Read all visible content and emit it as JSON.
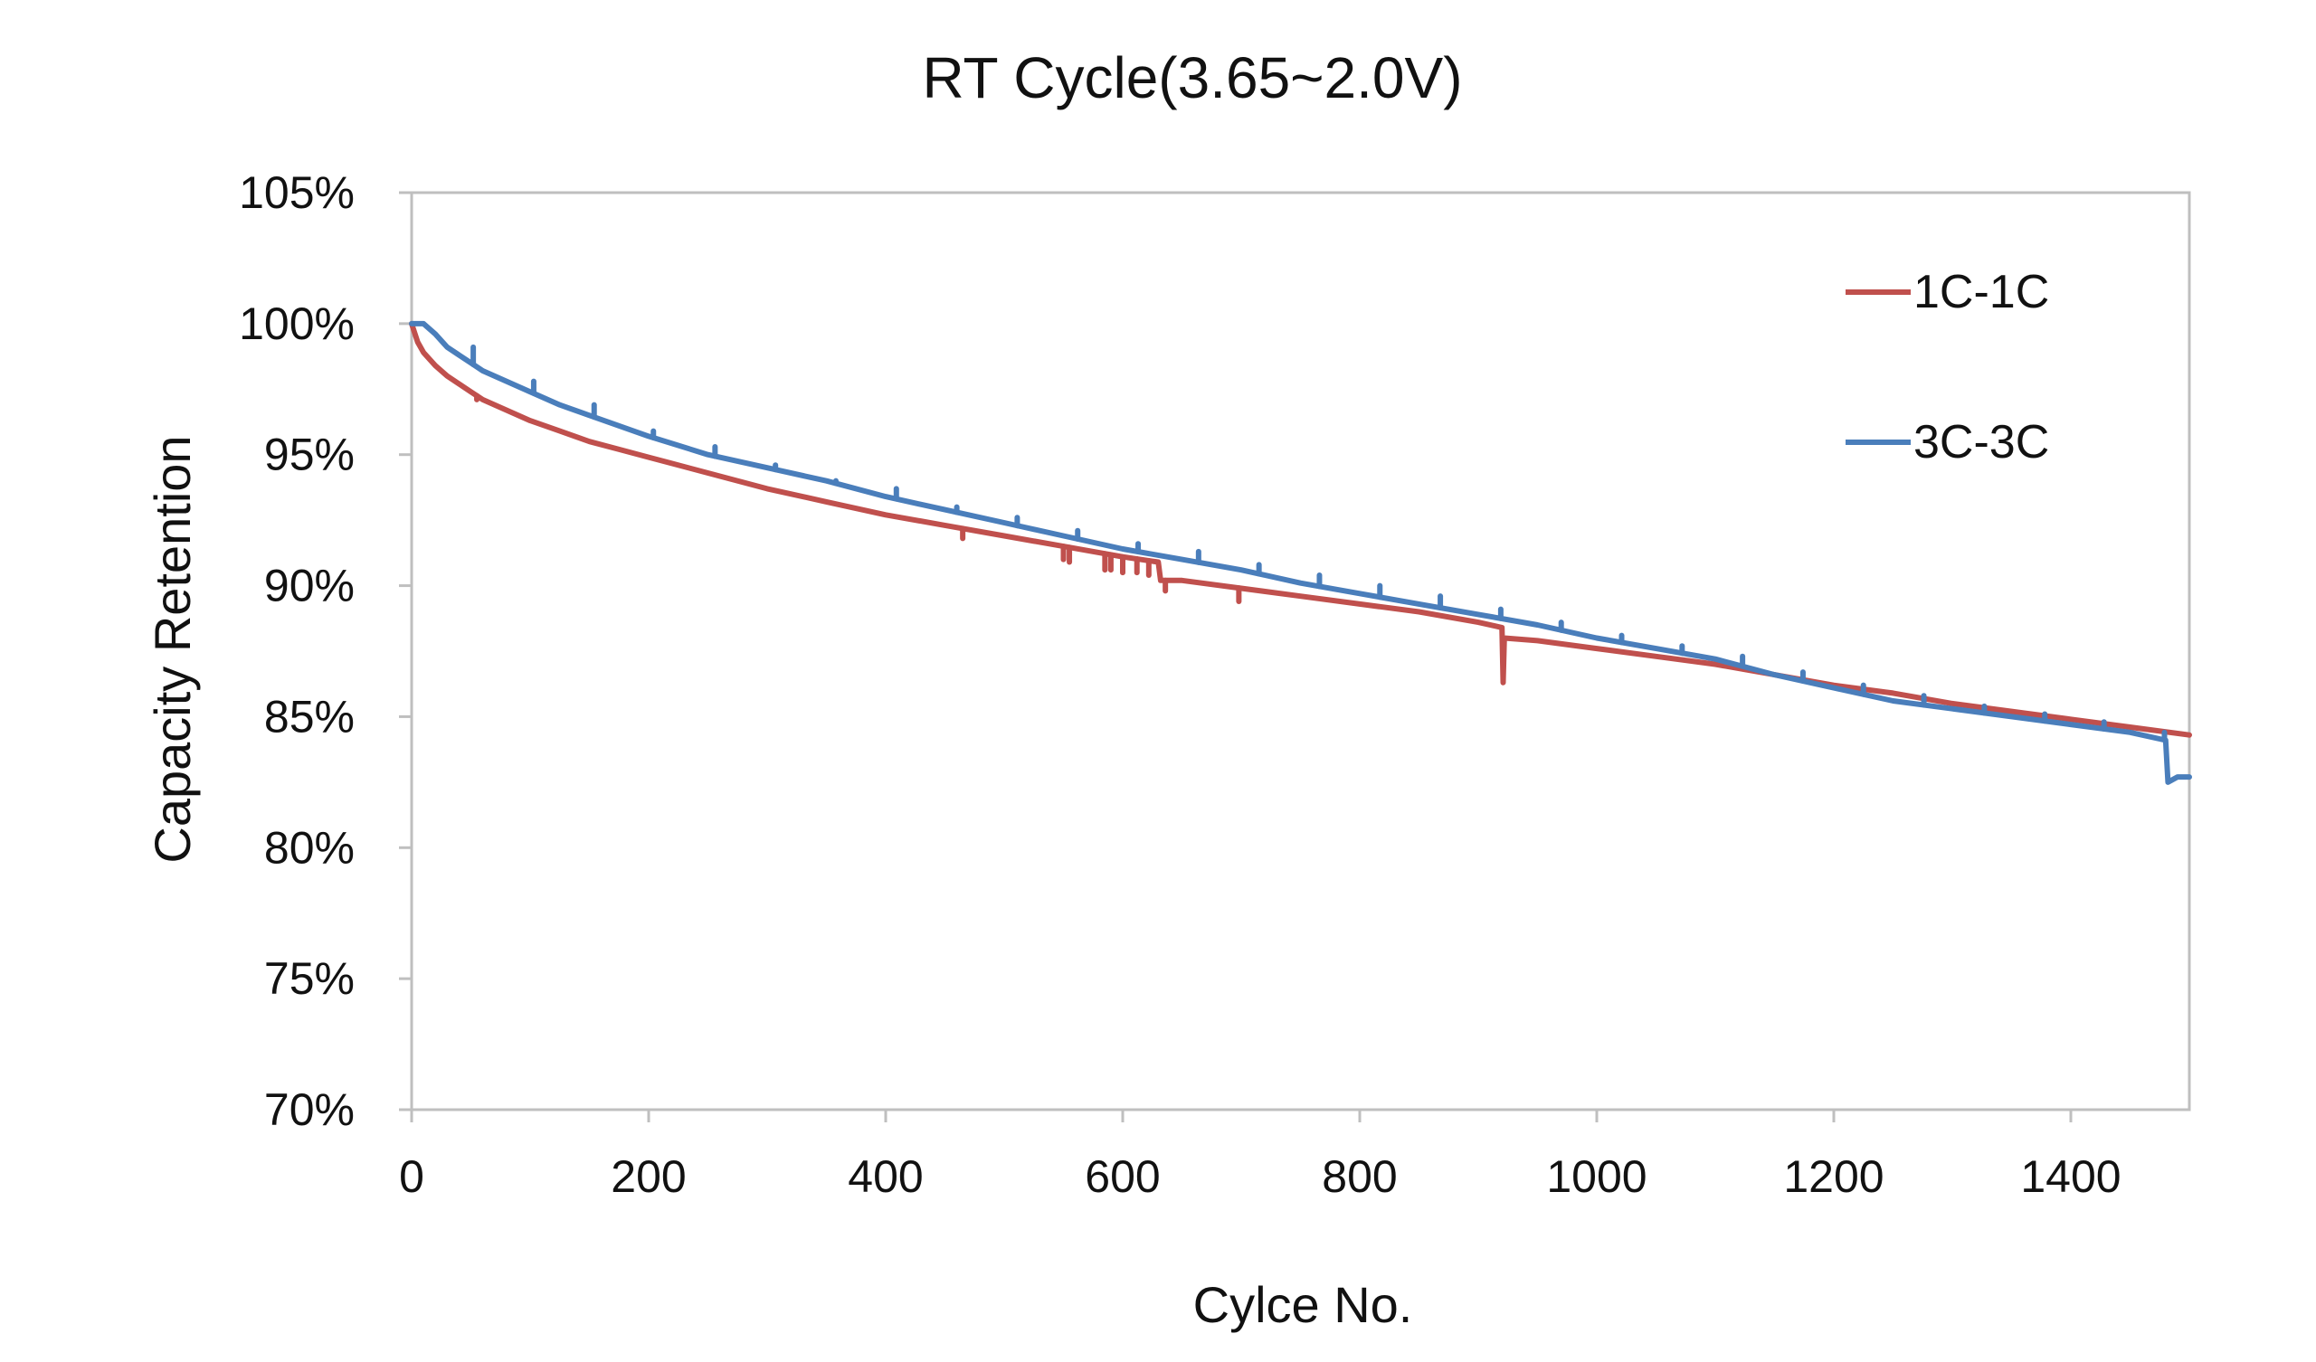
{
  "chart_data": {
    "type": "line",
    "title": "RT Cycle(3.65~2.0V)",
    "xlabel": "Cylce No.",
    "ylabel": "Capacity Retention",
    "xlim": [
      0,
      1500
    ],
    "ylim": [
      70,
      105
    ],
    "x_ticks": [
      0,
      200,
      400,
      600,
      800,
      1000,
      1200,
      1400
    ],
    "x_tick_labels": [
      "0",
      "200",
      "400",
      "600",
      "800",
      "1000",
      "1200",
      "1400"
    ],
    "y_ticks": [
      70,
      75,
      80,
      85,
      90,
      95,
      100,
      105
    ],
    "y_tick_labels": [
      "70%",
      "75%",
      "80%",
      "85%",
      "90%",
      "95%",
      "100%",
      "105%"
    ],
    "grid": false,
    "legend_position": "top-right",
    "series": [
      {
        "name": "1C-1C",
        "color": "#C0504D",
        "points": [
          [
            0,
            100.0
          ],
          [
            5,
            99.3
          ],
          [
            10,
            98.9
          ],
          [
            20,
            98.4
          ],
          [
            30,
            98.0
          ],
          [
            40,
            97.7
          ],
          [
            50,
            97.4
          ],
          [
            60,
            97.1
          ],
          [
            80,
            96.7
          ],
          [
            100,
            96.3
          ],
          [
            125,
            95.9
          ],
          [
            150,
            95.5
          ],
          [
            175,
            95.2
          ],
          [
            200,
            94.9
          ],
          [
            250,
            94.3
          ],
          [
            300,
            93.7
          ],
          [
            350,
            93.2
          ],
          [
            400,
            92.7
          ],
          [
            450,
            92.3
          ],
          [
            500,
            91.9
          ],
          [
            550,
            91.5
          ],
          [
            600,
            91.1
          ],
          [
            630,
            90.9
          ],
          [
            632,
            90.2
          ],
          [
            650,
            90.2
          ],
          [
            700,
            89.9
          ],
          [
            750,
            89.6
          ],
          [
            800,
            89.3
          ],
          [
            850,
            89.0
          ],
          [
            900,
            88.6
          ],
          [
            920,
            88.4
          ],
          [
            921,
            86.3
          ],
          [
            922,
            88.0
          ],
          [
            950,
            87.9
          ],
          [
            1000,
            87.6
          ],
          [
            1050,
            87.3
          ],
          [
            1100,
            87.0
          ],
          [
            1150,
            86.6
          ],
          [
            1200,
            86.2
          ],
          [
            1250,
            85.9
          ],
          [
            1300,
            85.5
          ],
          [
            1350,
            85.2
          ],
          [
            1400,
            84.9
          ],
          [
            1450,
            84.6
          ],
          [
            1500,
            84.3
          ]
        ],
        "dips": [
          [
            55,
            97.1
          ],
          [
            465,
            91.8
          ],
          [
            550,
            91.0
          ],
          [
            555,
            90.9
          ],
          [
            585,
            90.6
          ],
          [
            590,
            90.6
          ],
          [
            600,
            90.5
          ],
          [
            612,
            90.5
          ],
          [
            622,
            90.4
          ],
          [
            636,
            89.8
          ],
          [
            698,
            89.4
          ]
        ]
      },
      {
        "name": "3C-3C",
        "color": "#4A7EBB",
        "points": [
          [
            0,
            100.0
          ],
          [
            10,
            100.0
          ],
          [
            20,
            99.6
          ],
          [
            30,
            99.1
          ],
          [
            40,
            98.8
          ],
          [
            50,
            98.5
          ],
          [
            60,
            98.2
          ],
          [
            80,
            97.8
          ],
          [
            100,
            97.4
          ],
          [
            125,
            96.9
          ],
          [
            150,
            96.5
          ],
          [
            200,
            95.7
          ],
          [
            250,
            95.0
          ],
          [
            300,
            94.5
          ],
          [
            350,
            94.0
          ],
          [
            400,
            93.4
          ],
          [
            450,
            92.9
          ],
          [
            500,
            92.4
          ],
          [
            550,
            91.9
          ],
          [
            600,
            91.4
          ],
          [
            650,
            91.0
          ],
          [
            700,
            90.6
          ],
          [
            750,
            90.1
          ],
          [
            800,
            89.7
          ],
          [
            850,
            89.3
          ],
          [
            900,
            88.9
          ],
          [
            950,
            88.5
          ],
          [
            1000,
            88.0
          ],
          [
            1050,
            87.6
          ],
          [
            1100,
            87.2
          ],
          [
            1150,
            86.6
          ],
          [
            1200,
            86.1
          ],
          [
            1250,
            85.6
          ],
          [
            1300,
            85.3
          ],
          [
            1350,
            85.0
          ],
          [
            1400,
            84.7
          ],
          [
            1450,
            84.4
          ],
          [
            1480,
            84.1
          ],
          [
            1482,
            82.5
          ],
          [
            1490,
            82.7
          ],
          [
            1500,
            82.7
          ]
        ],
        "spikes": [
          [
            52,
            99.1
          ],
          [
            103,
            97.8
          ],
          [
            154,
            96.9
          ],
          [
            204,
            95.9
          ],
          [
            256,
            95.3
          ],
          [
            307,
            94.6
          ],
          [
            358,
            94.0
          ],
          [
            409,
            93.7
          ],
          [
            460,
            93.0
          ],
          [
            511,
            92.6
          ],
          [
            562,
            92.1
          ],
          [
            613,
            91.6
          ],
          [
            664,
            91.3
          ],
          [
            715,
            90.8
          ],
          [
            766,
            90.4
          ],
          [
            817,
            90.0
          ],
          [
            868,
            89.6
          ],
          [
            919,
            89.1
          ],
          [
            970,
            88.6
          ],
          [
            1021,
            88.1
          ],
          [
            1072,
            87.7
          ],
          [
            1123,
            87.3
          ],
          [
            1174,
            86.7
          ],
          [
            1225,
            86.2
          ],
          [
            1276,
            85.8
          ],
          [
            1327,
            85.4
          ],
          [
            1378,
            85.1
          ],
          [
            1428,
            84.8
          ],
          [
            1479,
            84.4
          ]
        ]
      }
    ]
  }
}
